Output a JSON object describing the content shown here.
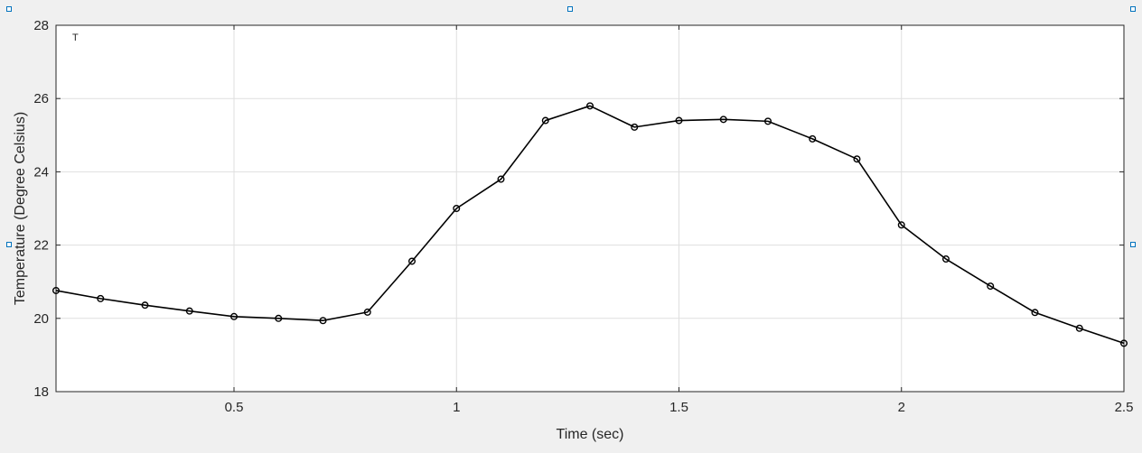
{
  "colors": {
    "figure_background": "#f0f0f0",
    "axes_background": "#ffffff",
    "grid": "#dfdfdf",
    "axis": "#262626",
    "series_line": "#000000",
    "selection_handle": "#0072bd"
  },
  "chart_data": {
    "type": "line",
    "corner_label": "T",
    "xlabel": "Time (sec)",
    "ylabel": "Temperature (Degree Celsius)",
    "xlim": [
      0.1,
      2.5
    ],
    "ylim": [
      18,
      28
    ],
    "xticks": [
      0.5,
      1,
      1.5,
      2,
      2.5
    ],
    "xtick_labels": [
      "0.5",
      "1",
      "1.5",
      "2",
      "2.5"
    ],
    "yticks": [
      18,
      20,
      22,
      24,
      26,
      28
    ],
    "ytick_labels": [
      "18",
      "20",
      "22",
      "24",
      "26",
      "28"
    ],
    "grid": true,
    "marker": "circle",
    "series": [
      {
        "x": [
          0.1,
          0.2,
          0.3,
          0.4,
          0.5,
          0.6,
          0.7,
          0.8,
          0.9,
          1.0,
          1.1,
          1.2,
          1.3,
          1.4,
          1.5,
          1.6,
          1.7,
          1.8,
          1.9,
          2.0,
          2.1,
          2.2,
          2.3,
          2.4,
          2.5
        ],
        "values": [
          20.76,
          20.54,
          20.36,
          20.2,
          20.05,
          20.0,
          19.94,
          20.17,
          21.56,
          23.0,
          23.8,
          25.4,
          25.8,
          25.22,
          25.4,
          25.43,
          25.38,
          24.9,
          24.35,
          22.55,
          21.62,
          20.88,
          20.16,
          19.73,
          19.32
        ]
      }
    ]
  }
}
